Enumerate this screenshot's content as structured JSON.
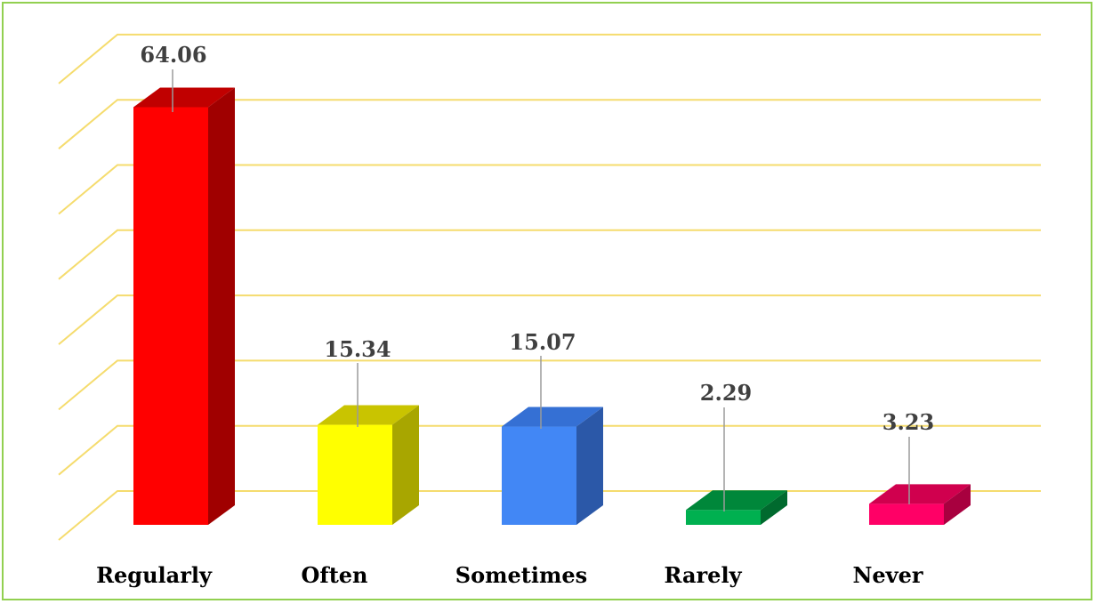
{
  "chart_data": {
    "type": "bar",
    "three_d": true,
    "categories": [
      "Regularly",
      "Often",
      "Sometimes",
      "Rarely",
      "Never"
    ],
    "values": [
      64.06,
      15.34,
      15.07,
      2.29,
      3.23
    ],
    "data_labels": [
      "64.06",
      "15.34",
      "15.07",
      "2.29",
      "3.23"
    ],
    "colors": {
      "front": [
        "#ff0000",
        "#ffff00",
        "#4287f5",
        "#00b050",
        "#ff0066"
      ],
      "top": [
        "#c00000",
        "#c9c400",
        "#3570d4",
        "#00873a",
        "#d0004e"
      ],
      "side": [
        "#a00000",
        "#a8a600",
        "#2b58a8",
        "#006a2e",
        "#a8003f"
      ],
      "gridline": "#f5dc6e",
      "frame": "#92d050",
      "leader": "#9a9a9a"
    },
    "ylim": [
      0,
      70
    ],
    "y_tick_step": 10,
    "grid": true,
    "axis_tick_labels_shown": false,
    "legend": "none",
    "title": "",
    "xlabel": "",
    "ylabel": ""
  }
}
